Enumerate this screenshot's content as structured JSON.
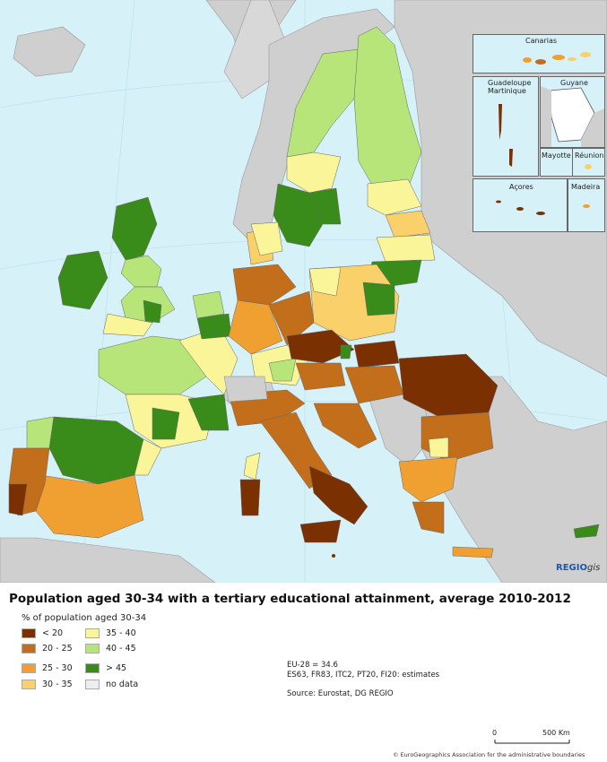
{
  "title": "Population aged 30-34 with a tertiary educational attainment, average 2010-2012",
  "legend": {
    "heading": "% of population aged 30-34",
    "classes": [
      {
        "label": "< 20",
        "color": "#7a3000"
      },
      {
        "label": "20 - 25",
        "color": "#c26e1a"
      },
      {
        "label": "25 - 30",
        "color": "#f0a030"
      },
      {
        "label": "30 - 35",
        "color": "#fad06a"
      },
      {
        "label": "35 - 40",
        "color": "#fbf59a"
      },
      {
        "label": "40 - 45",
        "color": "#b8e57a"
      },
      {
        "label": "> 45",
        "color": "#3a8c1a"
      },
      {
        "label": "no data",
        "color": "#eeeeee"
      }
    ]
  },
  "notes": [
    "EU-28 = 34.6",
    "ES63, FR83, ITC2, PT20, FI20: estimates"
  ],
  "source": "Source: Eurostat, DG REGIO",
  "insets": [
    "Canarias",
    "Guadeloupe",
    "Martinique",
    "Guyane",
    "Mayotte",
    "Réunion",
    "Açores",
    "Madeira"
  ],
  "brand": {
    "main": "REGIO",
    "suffix": "gis"
  },
  "scale": {
    "start": "0",
    "end": "500 Km"
  },
  "copyright": "© EuroGeographics Association for the administrative boundaries",
  "colors": {
    "sea": "#d6f1f7",
    "non_eu": "#cfcfcf",
    "border": "#888888"
  }
}
